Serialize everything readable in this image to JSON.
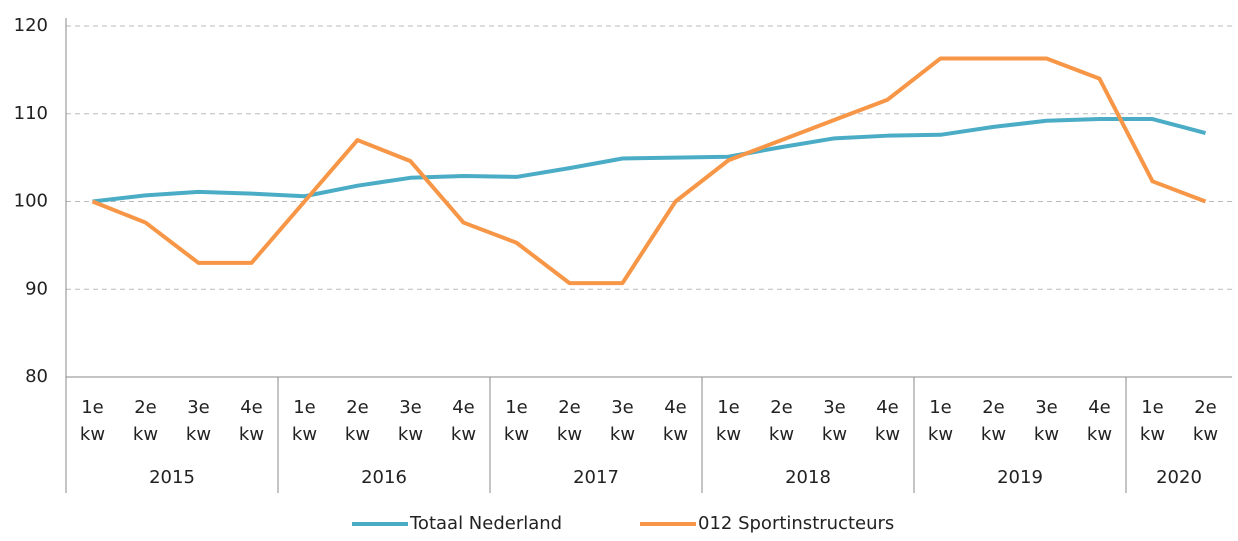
{
  "chart_data": {
    "type": "line",
    "categories": [
      {
        "label": "1e kw",
        "group": "2015"
      },
      {
        "label": "2e kw",
        "group": "2015"
      },
      {
        "label": "3e kw",
        "group": "2015"
      },
      {
        "label": "4e kw",
        "group": "2015"
      },
      {
        "label": "1e kw",
        "group": "2016"
      },
      {
        "label": "2e kw",
        "group": "2016"
      },
      {
        "label": "3e kw",
        "group": "2016"
      },
      {
        "label": "4e kw",
        "group": "2016"
      },
      {
        "label": "1e kw",
        "group": "2017"
      },
      {
        "label": "2e kw",
        "group": "2017"
      },
      {
        "label": "3e kw",
        "group": "2017"
      },
      {
        "label": "4e kw",
        "group": "2017"
      },
      {
        "label": "1e kw",
        "group": "2018"
      },
      {
        "label": "2e kw",
        "group": "2018"
      },
      {
        "label": "3e kw",
        "group": "2018"
      },
      {
        "label": "4e kw",
        "group": "2018"
      },
      {
        "label": "1e kw",
        "group": "2019"
      },
      {
        "label": "2e kw",
        "group": "2019"
      },
      {
        "label": "3e kw",
        "group": "2019"
      },
      {
        "label": "4e kw",
        "group": "2019"
      },
      {
        "label": "1e kw",
        "group": "2020"
      },
      {
        "label": "2e kw",
        "group": "2020"
      }
    ],
    "series": [
      {
        "name": "Totaal Nederland",
        "color": "#4bacc6",
        "values": [
          100,
          100.7,
          101.1,
          100.9,
          100.6,
          101.8,
          102.7,
          102.9,
          102.8,
          103.8,
          104.9,
          105.0,
          105.1,
          106.2,
          107.2,
          107.5,
          107.6,
          108.5,
          109.2,
          109.4,
          109.4,
          107.8
        ]
      },
      {
        "name": "012 Sportinstructeurs",
        "color": "#f79646",
        "values": [
          100,
          97.6,
          93.0,
          93.0,
          100.0,
          107.0,
          104.6,
          97.6,
          95.3,
          90.7,
          90.7,
          100.0,
          104.7,
          107.0,
          109.3,
          111.6,
          116.3,
          116.3,
          116.3,
          114.0,
          102.3,
          100.0
        ]
      }
    ],
    "ylim": [
      80,
      120
    ],
    "yticks": [
      80,
      90,
      100,
      110,
      120
    ],
    "grid": true,
    "legend": "bottom"
  }
}
